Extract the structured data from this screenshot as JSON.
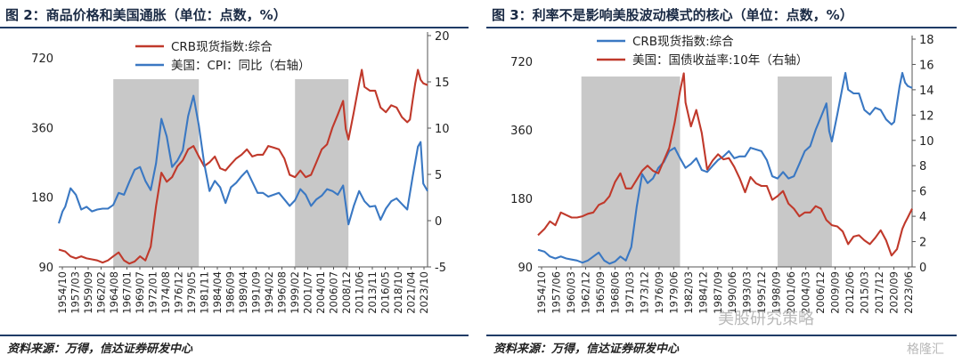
{
  "chart_data": [
    {
      "type": "line",
      "title": "图 2：商品价格和美国通胀（单位：点数，%）",
      "source": "资料来源：万得，信达证券研发中心",
      "y_left": {
        "ticks": [
          90,
          180,
          360,
          720
        ],
        "scale": "log",
        "range": [
          90,
          900
        ]
      },
      "y_right": {
        "ticks": [
          -5,
          0,
          5,
          10,
          15,
          20
        ],
        "range": [
          -5,
          20
        ]
      },
      "x_tick_labels": [
        "1954/10",
        "1957/03",
        "1959/09",
        "1962/02",
        "1964/08",
        "1967/01",
        "1969/07",
        "1972/01",
        "1974/08",
        "1976/12",
        "1979/05",
        "1981/11",
        "1984/04",
        "1986/09",
        "1989/04",
        "1991/09",
        "1994/02",
        "1996/08",
        "1999/02",
        "2001/07",
        "2004/01",
        "2006/07",
        "2008/12",
        "2011/06",
        "2013/11",
        "2016/05",
        "2018/10",
        "2021/04",
        "2023/10"
      ],
      "x_range": [
        1954.8,
        2023.8
      ],
      "shaded_periods": [
        [
          1965.0,
          1981.0
        ],
        [
          1999.0,
          2009.0
        ]
      ],
      "legend_placement": "top-center",
      "series": [
        {
          "name": "CRB现货指数:综合",
          "axis": "left",
          "color": "#c0392b",
          "x": [
            1954.8,
            1956,
            1957,
            1958,
            1959,
            1960,
            1961,
            1962,
            1963,
            1964,
            1965,
            1966,
            1967,
            1968,
            1969,
            1970,
            1971,
            1972,
            1973,
            1974,
            1975,
            1976,
            1977,
            1978,
            1979,
            1980,
            1981,
            1982,
            1983,
            1984,
            1985,
            1986,
            1987,
            1988,
            1989,
            1990,
            1991,
            1992,
            1993,
            1994,
            1995,
            1996,
            1997,
            1998,
            1999,
            2000,
            2001,
            2002,
            2003,
            2004,
            2005,
            2006,
            2007,
            2008,
            2008.5,
            2009,
            2010,
            2011,
            2011.5,
            2012,
            2013,
            2014,
            2015,
            2016,
            2017,
            2018,
            2019,
            2020,
            2020.5,
            2021,
            2021.5,
            2022,
            2022.5,
            2023,
            2023.8
          ],
          "values": [
            107,
            105,
            100,
            98,
            100,
            98,
            97,
            96,
            94,
            96,
            100,
            104,
            96,
            93,
            95,
            100,
            96,
            110,
            165,
            230,
            210,
            220,
            245,
            260,
            290,
            300,
            270,
            245,
            255,
            270,
            240,
            235,
            250,
            265,
            275,
            290,
            270,
            275,
            275,
            300,
            295,
            290,
            265,
            225,
            220,
            235,
            220,
            225,
            255,
            290,
            305,
            360,
            410,
            470,
            355,
            320,
            420,
            560,
            640,
            540,
            520,
            520,
            440,
            420,
            450,
            440,
            400,
            380,
            390,
            470,
            560,
            640,
            580,
            560,
            550
          ]
        },
        {
          "name": "美国：CPI：同比（右轴）",
          "axis": "right",
          "color": "#3a78c3",
          "x": [
            1954.8,
            1955.5,
            1956,
            1957,
            1958,
            1959,
            1960,
            1961,
            1962,
            1963,
            1964,
            1965,
            1966,
            1967,
            1968,
            1969,
            1970,
            1971,
            1972,
            1973,
            1974,
            1975,
            1976,
            1977,
            1978,
            1979,
            1980,
            1981,
            1982,
            1983,
            1984,
            1985,
            1986,
            1987,
            1988,
            1989,
            1990,
            1991,
            1992,
            1993,
            1994,
            1995,
            1996,
            1997,
            1998,
            1999,
            2000,
            2001,
            2002,
            2003,
            2004,
            2005,
            2006,
            2007,
            2008,
            2009,
            2010,
            2011,
            2012,
            2013,
            2014,
            2015,
            2016,
            2017,
            2018,
            2019,
            2020,
            2021,
            2022,
            2022.5,
            2023,
            2023.8
          ],
          "values": [
            -0.3,
            1.0,
            1.5,
            3.5,
            2.8,
            1.2,
            1.5,
            1.0,
            1.2,
            1.3,
            1.3,
            1.7,
            3.0,
            2.8,
            4.2,
            5.5,
            5.8,
            4.3,
            3.3,
            6.2,
            11.0,
            9.1,
            5.8,
            6.5,
            7.6,
            11.3,
            13.5,
            10.3,
            6.2,
            3.2,
            4.3,
            3.6,
            1.9,
            3.6,
            4.1,
            4.8,
            5.4,
            4.2,
            3.0,
            3.0,
            2.6,
            2.8,
            3.0,
            2.3,
            1.6,
            2.2,
            3.4,
            2.8,
            1.6,
            2.3,
            2.7,
            3.4,
            3.2,
            2.8,
            3.8,
            -0.4,
            1.6,
            3.2,
            2.1,
            1.5,
            1.6,
            0.1,
            1.3,
            2.1,
            2.4,
            1.8,
            1.2,
            4.7,
            8.0,
            8.5,
            4.0,
            3.2
          ]
        }
      ]
    },
    {
      "type": "line",
      "title": "图 3：利率不是影响美股波动模式的核心（单位：点数，%）",
      "source": "资料来源：万得，信达证券研发中心",
      "y_left": {
        "ticks": [
          90,
          180,
          360,
          720
        ],
        "scale": "log",
        "range": [
          90,
          900
        ]
      },
      "y_right": {
        "ticks": [
          0,
          2,
          4,
          6,
          8,
          10,
          12,
          14,
          16,
          18
        ],
        "range": [
          0,
          18
        ]
      },
      "x_tick_labels": [
        "1954/10",
        "1957/06",
        "1960/03",
        "1962/12",
        "1965/09",
        "1968/06",
        "1971/03",
        "1973/12",
        "1976/09",
        "1979/06",
        "1982/03",
        "1984/12",
        "1987/09",
        "1990/06",
        "1993/03",
        "1995/12",
        "1998/09",
        "2001/06",
        "2004/03",
        "2006/12",
        "2009/09",
        "2012/06",
        "2015/03",
        "2017/12",
        "2020/09",
        "2023/06"
      ],
      "x_range": [
        1954.8,
        2023.8
      ],
      "shaded_periods": [
        [
          1962.8,
          1981.0
        ],
        [
          1999.0,
          2009.0
        ]
      ],
      "legend_placement": "top-center",
      "series": [
        {
          "name": "CRB现货指数:综合",
          "axis": "left",
          "color": "#3a78c3",
          "x": [
            1954.8,
            1956,
            1957,
            1958,
            1959,
            1960,
            1961,
            1962,
            1963,
            1964,
            1965,
            1966,
            1967,
            1968,
            1969,
            1970,
            1971,
            1972,
            1973,
            1974,
            1975,
            1976,
            1977,
            1978,
            1979,
            1980,
            1981,
            1982,
            1983,
            1984,
            1985,
            1986,
            1987,
            1988,
            1989,
            1990,
            1991,
            1992,
            1993,
            1994,
            1995,
            1996,
            1997,
            1998,
            1999,
            2000,
            2001,
            2002,
            2003,
            2004,
            2005,
            2006,
            2007,
            2008,
            2008.5,
            2009,
            2010,
            2011,
            2011.5,
            2012,
            2013,
            2014,
            2015,
            2016,
            2017,
            2018,
            2019,
            2020,
            2020.5,
            2021,
            2021.5,
            2022,
            2022.5,
            2023,
            2023.8
          ],
          "values": [
            107,
            105,
            100,
            98,
            100,
            98,
            97,
            96,
            94,
            96,
            100,
            104,
            96,
            93,
            95,
            100,
            96,
            110,
            165,
            230,
            210,
            220,
            245,
            260,
            290,
            300,
            270,
            245,
            255,
            270,
            240,
            235,
            250,
            265,
            275,
            290,
            270,
            275,
            275,
            300,
            295,
            290,
            265,
            225,
            220,
            235,
            220,
            225,
            255,
            290,
            305,
            360,
            410,
            470,
            355,
            320,
            420,
            560,
            640,
            540,
            520,
            520,
            440,
            420,
            450,
            440,
            400,
            380,
            390,
            470,
            560,
            640,
            580,
            560,
            550
          ]
        },
        {
          "name": "美国：国债收益率:10年（右轴）",
          "axis": "right",
          "color": "#c0392b",
          "x": [
            1954.8,
            1956,
            1957,
            1958,
            1959,
            1960,
            1961,
            1962,
            1963,
            1964,
            1965,
            1966,
            1967,
            1968,
            1969,
            1970,
            1971,
            1972,
            1973,
            1974,
            1975,
            1976,
            1977,
            1978,
            1979,
            1980,
            1981,
            1981.7,
            1982,
            1983,
            1984,
            1985,
            1986,
            1987,
            1988,
            1989,
            1990,
            1991,
            1992,
            1993,
            1994,
            1995,
            1996,
            1997,
            1998,
            1999,
            2000,
            2001,
            2002,
            2003,
            2004,
            2005,
            2006,
            2007,
            2008,
            2009,
            2010,
            2011,
            2012,
            2013,
            2014,
            2015,
            2016,
            2017,
            2018,
            2019,
            2020,
            2021,
            2022,
            2022.5,
            2023,
            2023.8
          ],
          "values": [
            2.5,
            3.0,
            3.6,
            3.3,
            4.3,
            4.1,
            3.9,
            3.9,
            4.0,
            4.2,
            4.3,
            4.9,
            5.1,
            5.6,
            6.7,
            7.4,
            6.2,
            6.2,
            6.9,
            7.6,
            8.0,
            7.6,
            7.4,
            8.4,
            9.4,
            11.4,
            13.9,
            15.3,
            13.0,
            11.1,
            12.4,
            10.6,
            7.7,
            8.4,
            8.9,
            8.5,
            8.6,
            7.9,
            7.0,
            5.9,
            7.1,
            6.6,
            6.4,
            6.4,
            5.3,
            5.6,
            6.0,
            5.0,
            4.6,
            4.0,
            4.3,
            4.3,
            4.8,
            4.6,
            3.7,
            3.3,
            3.2,
            2.8,
            1.8,
            2.4,
            2.5,
            2.1,
            1.8,
            2.3,
            2.9,
            2.1,
            0.9,
            1.4,
            3.0,
            3.5,
            3.9,
            4.6
          ]
        }
      ]
    }
  ],
  "watermark": {
    "left": "美股研究策略",
    "right": "格隆汇"
  }
}
